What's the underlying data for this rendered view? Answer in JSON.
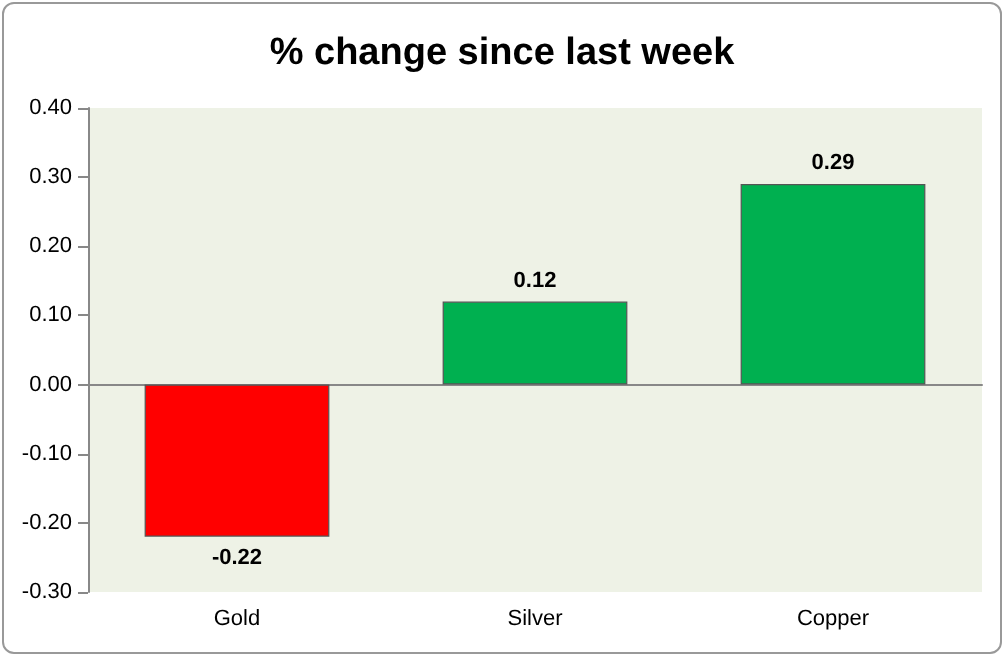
{
  "chart_data": {
    "type": "bar",
    "title": "% change since last week",
    "categories": [
      "Gold",
      "Silver",
      "Copper"
    ],
    "values": [
      -0.22,
      0.12,
      0.29
    ],
    "colors": [
      "#ff0000",
      "#00b050",
      "#00b050"
    ],
    "ylim": [
      -0.3,
      0.4
    ],
    "yticks": [
      {
        "value": -0.3,
        "label": "-0.30"
      },
      {
        "value": -0.2,
        "label": "-0.20"
      },
      {
        "value": -0.1,
        "label": "-0.10"
      },
      {
        "value": 0,
        "label": "0.00"
      },
      {
        "value": 0.1,
        "label": "0.10"
      },
      {
        "value": 0.2,
        "label": "0.20"
      },
      {
        "value": 0.3,
        "label": "0.30"
      },
      {
        "value": 0.4,
        "label": "0.40"
      }
    ],
    "data_labels": true
  }
}
